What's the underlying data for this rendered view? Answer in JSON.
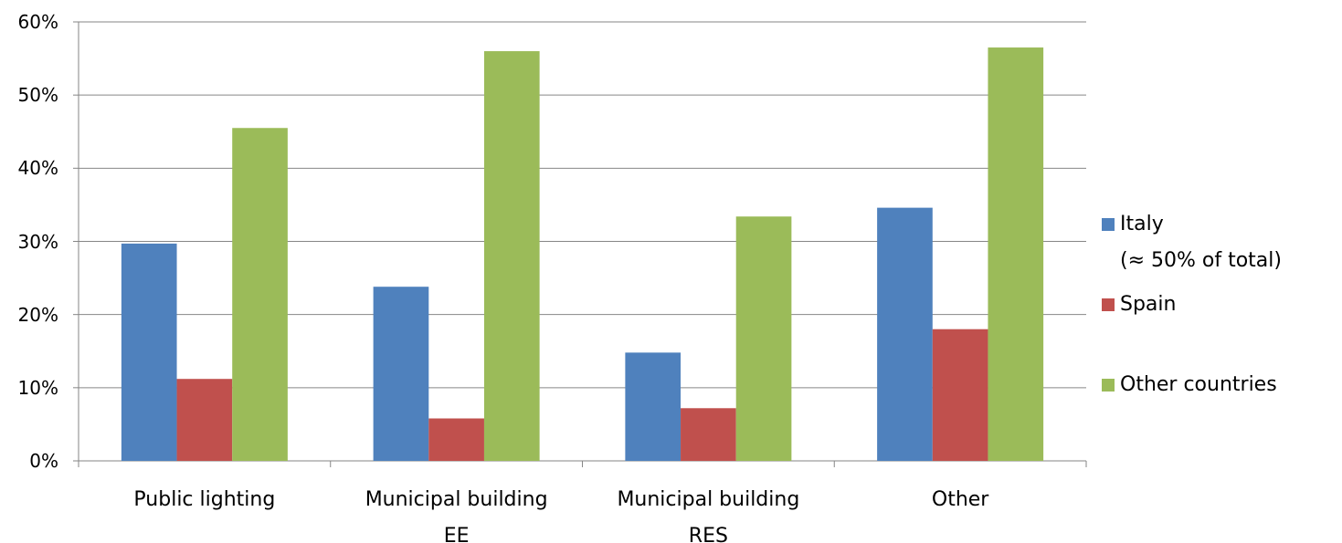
{
  "chart_data": {
    "type": "bar",
    "categories": [
      "Public lighting",
      "Municipal building\nEE",
      "Municipal building\nRES",
      "Other"
    ],
    "series": [
      {
        "name": "Italy\n(≈ 50% of total)",
        "color": "#4f81bd",
        "values": [
          29.7,
          23.8,
          14.8,
          34.6
        ]
      },
      {
        "name": "Spain",
        "color": "#c0504d",
        "values": [
          11.2,
          5.8,
          7.2,
          18
        ]
      },
      {
        "name": "Other countries",
        "color": "#9bbb59",
        "values": [
          45.5,
          56,
          33.4,
          56.5
        ]
      }
    ],
    "ylim": [
      0,
      60
    ],
    "yticks": [
      {
        "value": 0,
        "label": "0%"
      },
      {
        "value": 10,
        "label": "10%"
      },
      {
        "value": 20,
        "label": "20%"
      },
      {
        "value": 30,
        "label": "30%"
      },
      {
        "value": 40,
        "label": "40%"
      },
      {
        "value": 50,
        "label": "50%"
      },
      {
        "value": 60,
        "label": "60%"
      }
    ],
    "grid": true,
    "legend": "right"
  }
}
